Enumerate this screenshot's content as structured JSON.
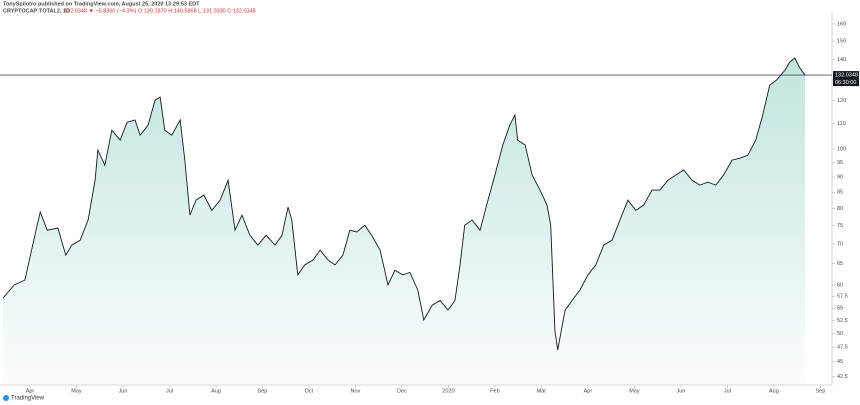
{
  "header": {
    "author": "TonySpilotro published on TradingView.com, August 25, 2020 13:29:53 EDT",
    "symbol": "CRYPTOCAP:TOTAL2, 1D",
    "quote": "132.0348 ▼ −5.8360 (−4.3%) O:139.1870 H:140.5868 L:131.0330 C:132.0348",
    "last_price": "132.0348",
    "countdown": "06:30:00",
    "brand": "TradingView"
  },
  "chart_data": {
    "type": "area",
    "log": true,
    "color": "#131722",
    "fill": "#4db6a4",
    "x": [
      -0.58,
      -0.34,
      -0.11,
      0.13,
      0.22,
      0.37,
      0.6,
      0.77,
      0.9,
      1.08,
      1.25,
      1.4,
      1.46,
      1.61,
      1.76,
      1.94,
      2.09,
      2.26,
      2.37,
      2.54,
      2.69,
      2.8,
      2.9,
      3.05,
      3.23,
      3.33,
      3.44,
      3.57,
      3.74,
      3.91,
      4.09,
      4.26,
      4.41,
      4.56,
      4.73,
      4.9,
      5.08,
      5.27,
      5.42,
      5.55,
      5.63,
      5.76,
      5.91,
      6.09,
      6.24,
      6.41,
      6.56,
      6.73,
      6.88,
      7.03,
      7.2,
      7.35,
      7.53,
      7.7,
      7.85,
      8.02,
      8.17,
      8.34,
      8.47,
      8.65,
      8.82,
      8.99,
      9.14,
      9.25,
      9.35,
      9.51,
      9.68,
      9.85,
      10.0,
      10.17,
      10.32,
      10.43,
      10.49,
      10.65,
      10.8,
      10.97,
      11.12,
      11.2,
      11.29,
      11.35,
      11.51,
      11.66,
      11.83,
      12.0,
      12.17,
      12.34,
      12.52,
      12.69,
      12.86,
      13.03,
      13.2,
      13.38,
      13.55,
      13.72,
      13.89,
      14.06,
      14.24,
      14.41,
      14.58,
      14.75,
      14.92,
      15.1,
      15.27,
      15.44,
      15.61,
      15.76,
      15.91,
      16.06,
      16.24,
      16.34,
      16.45,
      16.56,
      16.67
    ],
    "values": [
      57.1,
      60.0,
      61.1,
      73.7,
      78.9,
      73.7,
      74.3,
      67.1,
      69.7,
      71.0,
      76.6,
      88.9,
      99.6,
      94.1,
      107.3,
      103.4,
      110.6,
      111.5,
      105.3,
      109.4,
      120.1,
      121.5,
      107.3,
      105.3,
      111.5,
      95.9,
      78.0,
      82.5,
      84.1,
      79.4,
      82.5,
      88.9,
      73.7,
      78.0,
      72.3,
      69.7,
      72.3,
      69.7,
      72.3,
      80.4,
      76.6,
      62.3,
      64.7,
      65.9,
      68.4,
      65.9,
      64.7,
      67.1,
      73.7,
      73.2,
      75.1,
      72.3,
      68.4,
      60.0,
      63.4,
      62.3,
      62.9,
      58.9,
      52.6,
      55.6,
      56.6,
      54.6,
      56.6,
      64.7,
      75.1,
      76.6,
      73.7,
      82.5,
      90.7,
      101.5,
      109.4,
      113.6,
      103.4,
      101.5,
      90.7,
      85.7,
      81.0,
      75.1,
      50.6,
      47.0,
      54.6,
      56.6,
      58.9,
      62.3,
      64.7,
      69.7,
      71.0,
      76.6,
      82.5,
      79.4,
      81.0,
      85.7,
      85.7,
      88.9,
      90.7,
      92.4,
      88.9,
      87.3,
      88.3,
      87.3,
      90.7,
      95.9,
      96.6,
      97.7,
      103.4,
      113.6,
      127.1,
      129.6,
      134.5,
      138.6,
      140.7,
      135.5,
      132.0
    ],
    "xlim": [
      -0.645,
      17.25
    ],
    "ylim": [
      41.2,
      167.3
    ],
    "xticks": [
      {
        "value": 0,
        "label": "Apr"
      },
      {
        "value": 1,
        "label": "May"
      },
      {
        "value": 2,
        "label": "Jun"
      },
      {
        "value": 3,
        "label": "Jul"
      },
      {
        "value": 4,
        "label": "Aug"
      },
      {
        "value": 5,
        "label": "Sep"
      },
      {
        "value": 6,
        "label": "Oct"
      },
      {
        "value": 7,
        "label": "Nov"
      },
      {
        "value": 8,
        "label": "Dec"
      },
      {
        "value": 9,
        "label": "2020"
      },
      {
        "value": 10,
        "label": "Feb"
      },
      {
        "value": 11,
        "label": "Mar"
      },
      {
        "value": 12,
        "label": "Apr"
      },
      {
        "value": 13,
        "label": "May"
      },
      {
        "value": 14,
        "label": "Jun"
      },
      {
        "value": 15,
        "label": "Jul"
      },
      {
        "value": 16,
        "label": "Aug"
      },
      {
        "value": 17,
        "label": "Sep"
      }
    ],
    "yticks": [
      160,
      150,
      140,
      130,
      120,
      110,
      100,
      95,
      90,
      85,
      80,
      75,
      70,
      65,
      60,
      57.5,
      55,
      52.5,
      50,
      47.5,
      45,
      42.5
    ]
  }
}
